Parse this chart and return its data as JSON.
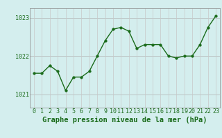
{
  "x": [
    0,
    1,
    2,
    3,
    4,
    5,
    6,
    7,
    8,
    9,
    10,
    11,
    12,
    13,
    14,
    15,
    16,
    17,
    18,
    19,
    20,
    21,
    22,
    23
  ],
  "y": [
    1021.55,
    1021.55,
    1021.75,
    1021.6,
    1021.1,
    1021.45,
    1021.45,
    1021.6,
    1022.0,
    1022.4,
    1022.7,
    1022.75,
    1022.65,
    1022.2,
    1022.3,
    1022.3,
    1022.3,
    1022.0,
    1021.95,
    1022.0,
    1022.0,
    1022.3,
    1022.75,
    1023.05
  ],
  "line_color": "#1a6b1a",
  "marker_color": "#1a6b1a",
  "bg_color": "#d4eeee",
  "grid_color_h": "#b0b0b0",
  "grid_color_v": "#c8c8c8",
  "axis_label_color": "#1a6b1a",
  "tick_color": "#1a6b1a",
  "xlabel": "Graphe pression niveau de la mer (hPa)",
  "ylim": [
    1020.65,
    1023.25
  ],
  "yticks": [
    1021,
    1022,
    1023
  ],
  "xticks": [
    0,
    1,
    2,
    3,
    4,
    5,
    6,
    7,
    8,
    9,
    10,
    11,
    12,
    13,
    14,
    15,
    16,
    17,
    18,
    19,
    20,
    21,
    22,
    23
  ],
  "xlabel_fontsize": 7.5,
  "tick_fontsize": 6.0,
  "line_width": 1.0,
  "marker_size": 2.5
}
